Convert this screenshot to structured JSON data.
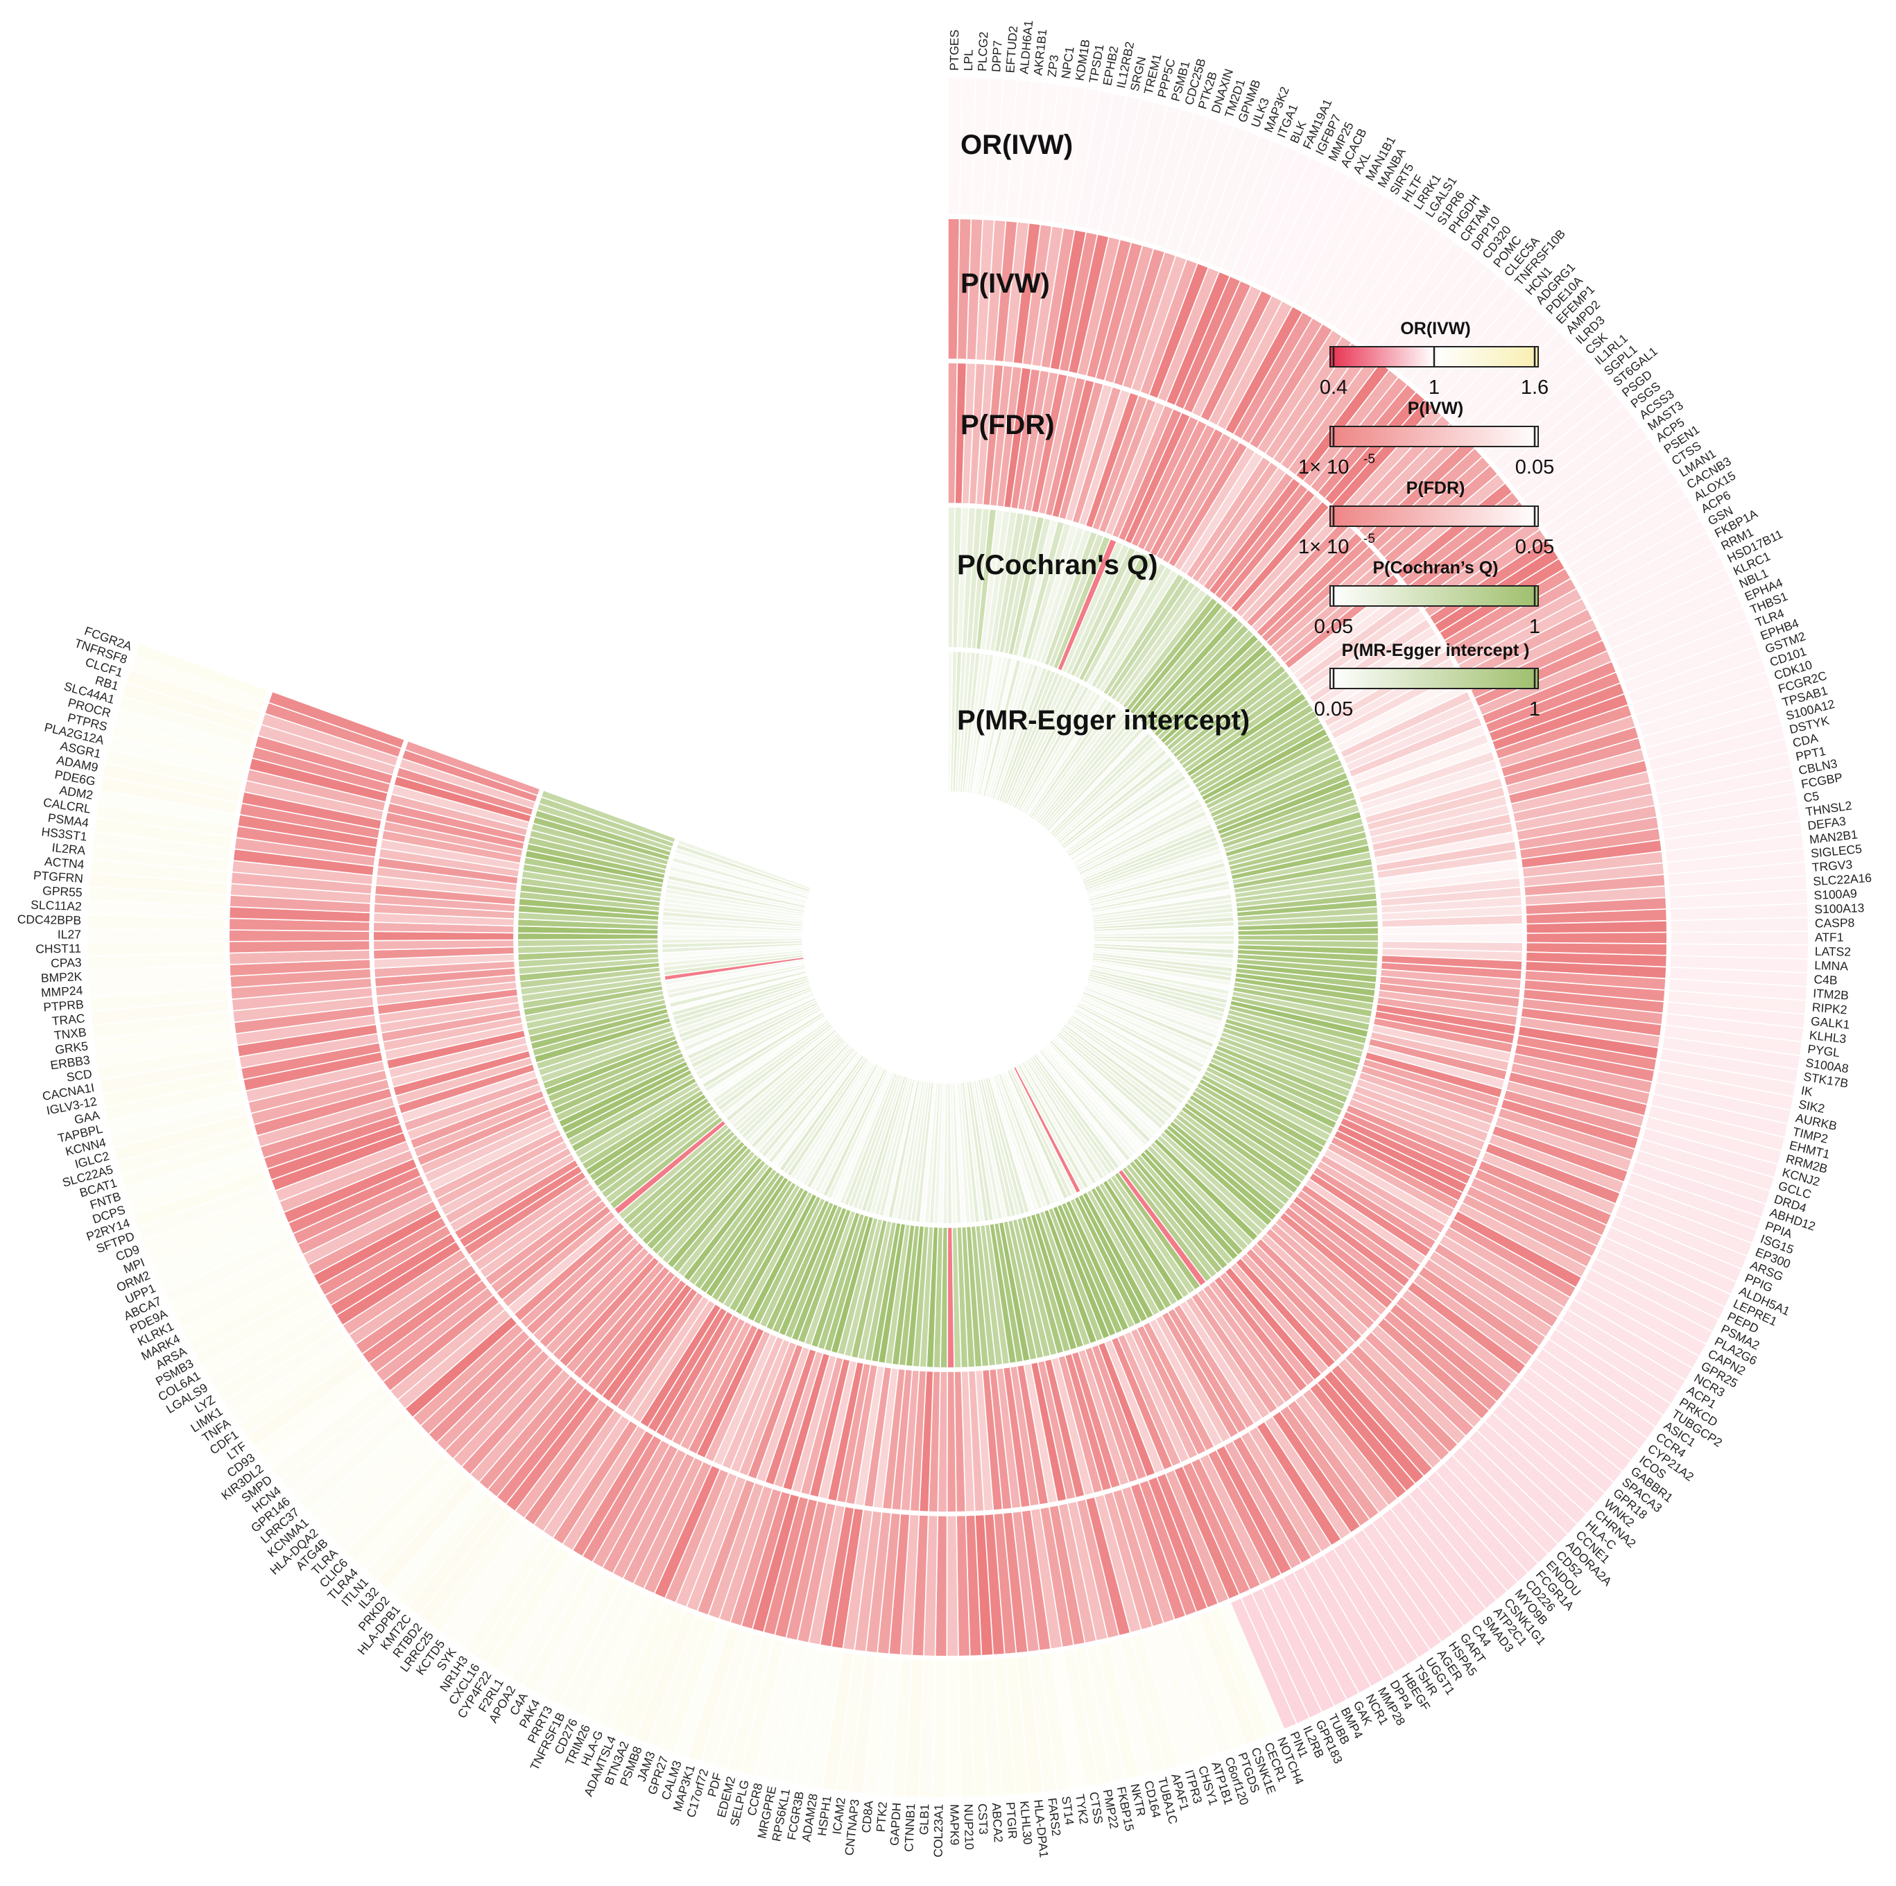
{
  "chart_data": {
    "type": "circular-heatmap",
    "tracks": [
      {
        "key": "or",
        "title": "OR(IVW)"
      },
      {
        "key": "p",
        "title": "P(IVW)"
      },
      {
        "key": "fdr",
        "title": "P(FDR)"
      },
      {
        "key": "q",
        "title": "P(Cochran's Q)"
      },
      {
        "key": "egger",
        "title": "P(MR-Egger intercept)"
      }
    ],
    "legends": [
      {
        "key": "or",
        "title": "OR(IVW)",
        "ticks": [
          "0.4",
          "1",
          "1.6"
        ],
        "colors": [
          "#e8304f",
          "#ffffff",
          "#f8efb0"
        ]
      },
      {
        "key": "p",
        "title": "P(IVW)",
        "ticks": [
          "1× 10",
          "-5",
          "0.05"
        ],
        "colors": [
          "#ee8484",
          "#ffffff"
        ]
      },
      {
        "key": "fdr",
        "title": "P(FDR)",
        "ticks": [
          "1× 10",
          "-5",
          "0.05"
        ],
        "colors": [
          "#ee8484",
          "#ffffff"
        ]
      },
      {
        "key": "q",
        "title": "P(Cochran’s Q)",
        "ticks": [
          "0.05",
          "1"
        ],
        "colors": [
          "#ffffff",
          "#9fbf6c"
        ]
      },
      {
        "key": "egger",
        "title": "P(MR-Egger intercept )",
        "ticks": [
          "0.05",
          "1"
        ],
        "colors": [
          "#ffffff",
          "#9fbf6c"
        ]
      }
    ],
    "genes": [
      "PTGES",
      "LPL",
      "PLCG2",
      "DPP7",
      "EFTUD2",
      "ALDH6A1",
      "AKR1B1",
      "ZP3",
      "NPC1",
      "KDM1B",
      "TPSD1",
      "EPHB2",
      "IL12RB2",
      "SRGN",
      "TREM1",
      "PPP5C",
      "PSMB1",
      "CDC25B",
      "PTK2B",
      "DNAXIN",
      "TM2D1",
      "GPNMB",
      "ULK3",
      "MAP3K2",
      "ITGA1",
      "BLK",
      "FAM19A1",
      "IGFBP7",
      "MMP25",
      "ACACB",
      "AXL",
      "MAN1B1",
      "MANBA",
      "SIRT5",
      "HLTF",
      "LRRK1",
      "LGALS1",
      "S1PR6",
      "PHGDH",
      "CRTAM",
      "DPP10",
      "CD320",
      "POMC",
      "CLEC5A",
      "TNFRSF10B",
      "HCN1",
      "ADGRG1",
      "PDE10A",
      "EFEMP1",
      "AMPD2",
      "ILRD3",
      "CSK",
      "IL1RL1",
      "SGPL1",
      "ST6GAL1",
      "PSGD",
      "PSGS",
      "ACSS3",
      "MAST3",
      "ACP5",
      "PSEN1",
      "CTSS",
      "LMAN1",
      "CACNB3",
      "ALOX15",
      "ACP6",
      "GSN",
      "FKBP1A",
      "RRM1",
      "HSD17B11",
      "KLRC1",
      "NBL1",
      "EPHA4",
      "THBS1",
      "TLR4",
      "EPHB4",
      "GSTM2",
      "CD101",
      "CDK10",
      "FCGR2C",
      "TPSAB1",
      "S100A12",
      "DSTYK",
      "CDA",
      "PPT1",
      "CBLN3",
      "FCGBP",
      "C5",
      "THNSL2",
      "DEFA3",
      "MAN2B1",
      "SIGLEC5",
      "TRGV3",
      "SLC22A16",
      "S100A9",
      "S100A13",
      "CASP8",
      "ATF1",
      "LATS2",
      "LMNA",
      "C4B",
      "ITM2B",
      "RIPK2",
      "GALK1",
      "KLHL3",
      "PYGL",
      "S100A8",
      "STK17B",
      "IK",
      "SIK2",
      "AURKB",
      "TIMP2",
      "EHMT1",
      "RRM2B",
      "KCNJ2",
      "GCLC",
      "DRD4",
      "ABHD12",
      "PPIA",
      "ISG15",
      "EP300",
      "ARSG",
      "PPIG",
      "ALDH5A1",
      "LEPRE1",
      "PEPD",
      "PSMA2",
      "PLA2G6",
      "CAPN2",
      "GPR25",
      "NCR3",
      "ACP1",
      "PRKCD",
      "TUBGCP2",
      "ASIC1",
      "CCR4",
      "CYP21A2",
      "ICOS",
      "GABBR1",
      "SPACA3",
      "GPR18",
      "WNK2",
      "CHRNA2",
      "HLA-C",
      "CCNE1",
      "ADORA2A",
      "CD52",
      "ENDOU",
      "FCGR1A",
      "CD226",
      "MYO9B",
      "CSNK1G1",
      "ATP2C1",
      "SMAD3",
      "CA4",
      "GART",
      "HSPA5",
      "AGER",
      "UGGT1",
      "TSHR",
      "HBEGF",
      "DPP4",
      "MMP28",
      "NCR1",
      "GAK",
      "BMP4",
      "TUBB",
      "GPR183",
      "IL2RB",
      "PIN1",
      "NOTCH4",
      "CECR1",
      "CSNK1E",
      "PTGDS",
      "C6orf120",
      "ATP1B1",
      "CHSY1",
      "ITPR3",
      "APAF1",
      "TUBA1C",
      "CD164",
      "NKTR",
      "FKBP15",
      "PMP22",
      "CTSS",
      "TYK2",
      "ST14",
      "FARS2",
      "HLA-DPA1",
      "KLHL30",
      "PTGIR",
      "ABCA2",
      "CST3",
      "NUP210",
      "MAPK9",
      "COL23A1",
      "GLB1",
      "CTNNB1",
      "GAPDH",
      "PTK2",
      "CD8A",
      "CNTNAP3",
      "ICAM2",
      "HSPH1",
      "ADAM28",
      "FCGR3B",
      "RPS6KL1",
      "MRGPRE",
      "CCR8",
      "SELPLG",
      "EDEM2",
      "PDF",
      "C17orf72",
      "MAP3K1",
      "CALM3",
      "GPR27",
      "JAM3",
      "PSMB8",
      "BTN3A2",
      "ADAMTSL4",
      "HLA-G",
      "TRIM26",
      "CD276",
      "TNFRSF1B",
      "PRRT3",
      "PAK4",
      "C4A",
      "APOA2",
      "F2RL1",
      "CYP4F22",
      "CXCL16",
      "NR1H3",
      "SYK",
      "KCTD5",
      "LRRC25",
      "RTBD2",
      "KMT2C",
      "HLA-DPB1",
      "PRKD2",
      "IL32",
      "ITLN1",
      "TLRA4",
      "CLIC6",
      "TLRA",
      "ATG4B",
      "HLA-DQA2",
      "KCNMA1",
      "LRRC37",
      "GPR146",
      "HCN4",
      "SMPD",
      "KIR3DL2",
      "CD93",
      "LTF",
      "CDF1",
      "TNFA",
      "LIMK1",
      "LYZ",
      "LGALS9",
      "COL6A1",
      "PSMB3",
      "ARSA",
      "MARK4",
      "KLRK1",
      "PDE9A",
      "ABCA7",
      "UPP1",
      "ORM2",
      "MPI",
      "CD9",
      "SFTPD",
      "P2RY14",
      "DCPS",
      "FNTB",
      "BCAT1",
      "SLC22A5",
      "IGLC2",
      "KCNN4",
      "TAPBPL",
      "GAA",
      "IGLV3-12",
      "CACNA1I",
      "SCD",
      "ERBB3",
      "GRK5",
      "TNXB",
      "TRAC",
      "PTPRB",
      "MMP24",
      "BMP2K",
      "CPA3",
      "CHST11",
      "IL27",
      "CDC42BPB",
      "SLC11A2",
      "GPR55",
      "PTGFRN",
      "ACTN4",
      "IL2RA",
      "HS3ST1",
      "PSMA4",
      "CALCRL",
      "ADM2",
      "PDE6G",
      "ADAM9",
      "ASGR1",
      "PLA2G12A",
      "PTPRS",
      "PROCR",
      "SLC44A1",
      "RB1",
      "CLCF1",
      "TNFRSF8",
      "FCGR2A"
    ]
  }
}
